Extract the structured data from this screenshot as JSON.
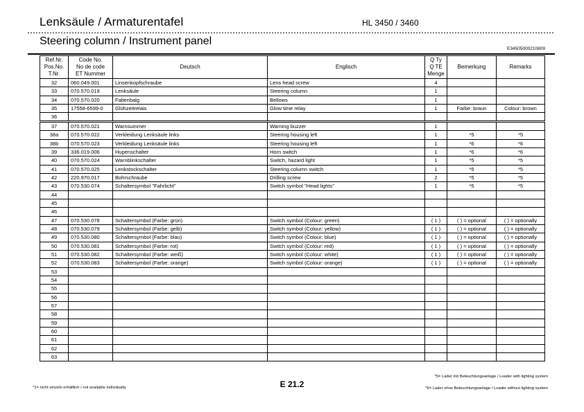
{
  "colors": {
    "text": "#000000",
    "background": "#ffffff"
  },
  "header": {
    "title_de": "Lenksäule / Armaturentafel",
    "model": "HL 3450 / 3460",
    "title_en": "Steering column / Instrument panel",
    "doc_code": "E34505000210809"
  },
  "table": {
    "columns": {
      "ref": "Ref.Nr.\nPos.No.\nT.Nr.",
      "code": "Code No.\nNo de code\nET Nummer",
      "de": "Deutsch",
      "en": "Englisch",
      "qty": "Q Ty\nQ TE\nMenge",
      "bem": "Bemerkung",
      "rem": "Remarks"
    },
    "rows": [
      {
        "ref": "32",
        "code": "060.049.001",
        "de": "Linsenkopfschraube",
        "en": "Lens head screw",
        "qty": "4",
        "bem": "",
        "rem": ""
      },
      {
        "ref": "33",
        "code": "070.570.019",
        "de": "Lenksäule",
        "en": "Steering column",
        "qty": "1",
        "bem": "",
        "rem": ""
      },
      {
        "ref": "34",
        "code": "070.570.020",
        "de": "Faltenbalg",
        "en": "Bellows",
        "qty": "1",
        "bem": "",
        "rem": ""
      },
      {
        "ref": "35",
        "code": "17558-6599-0",
        "de": "Glühzeitrelais",
        "en": "Glow time relay",
        "qty": "1",
        "bem": "Farbe: braun",
        "rem": "Colour: brown"
      },
      {
        "ref": "36",
        "code": "",
        "de": "",
        "en": "",
        "qty": "",
        "bem": "",
        "rem": ""
      },
      {
        "ref": "37",
        "code": "070.570.021",
        "de": "Warnsummer",
        "en": "Warning buzzer",
        "qty": "1",
        "bem": "",
        "rem": ""
      },
      {
        "ref": "38a",
        "code": "070.570.022",
        "de": "Verkleidung Lenksäule links",
        "en": "Steering housing left",
        "qty": "1",
        "bem": "*5",
        "rem": "*5"
      },
      {
        "ref": "38b",
        "code": "070.570.023",
        "de": "Verkleidung Lenksäule links",
        "en": "Steering housing left",
        "qty": "1",
        "bem": "*6",
        "rem": "*6"
      },
      {
        "ref": "39",
        "code": "336.019.006",
        "de": "Hupenschalter",
        "en": "Horn switch",
        "qty": "1",
        "bem": "*6",
        "rem": "*6"
      },
      {
        "ref": "40",
        "code": "070.570.024",
        "de": "Warnblinkschalter",
        "en": "Switch, hazard light",
        "qty": "1",
        "bem": "*5",
        "rem": "*5"
      },
      {
        "ref": "41",
        "code": "070.570.025",
        "de": "Lenkstockschalter",
        "en": "Steering column switch",
        "qty": "1",
        "bem": "*5",
        "rem": "*5"
      },
      {
        "ref": "42",
        "code": "220.970.017",
        "de": "Bohrschraube",
        "en": "Drilling screw",
        "qty": "2",
        "bem": "*5",
        "rem": "*5"
      },
      {
        "ref": "43",
        "code": "070.530.074",
        "de": "Schaltersymbol \"Fahrlicht\"",
        "en": "Switch symbol \"Head lights\"",
        "qty": "1",
        "bem": "*5",
        "rem": "*5"
      },
      {
        "ref": "44",
        "code": "",
        "de": "",
        "en": "",
        "qty": "",
        "bem": "",
        "rem": ""
      },
      {
        "ref": "45",
        "code": "",
        "de": "",
        "en": "",
        "qty": "",
        "bem": "",
        "rem": ""
      },
      {
        "ref": "46",
        "code": "",
        "de": "",
        "en": "",
        "qty": "",
        "bem": "",
        "rem": ""
      },
      {
        "ref": "47",
        "code": "070.530.078",
        "de": "Schaltersymbol (Farbe: grün)",
        "en": "Switch symbol (Colour: green)",
        "qty": "( 1 )",
        "bem": "(  ) = optional",
        "rem": "(  ) = optionally"
      },
      {
        "ref": "48",
        "code": "070.530.079",
        "de": "Schaltersymbol (Farbe: gelb)",
        "en": "Switch symbol (Colour: yellow)",
        "qty": "( 1 )",
        "bem": "(  ) = optional",
        "rem": "(  ) = optionally"
      },
      {
        "ref": "49",
        "code": "070.530.080",
        "de": "Schaltersymbol (Farbe: blau)",
        "en": "Switch symbol (Colour: blue)",
        "qty": "( 1 )",
        "bem": "(  ) = optional",
        "rem": "(  ) = optionally"
      },
      {
        "ref": "50",
        "code": "070.530.081",
        "de": "Schaltersymbol (Farbe: rot)",
        "en": "Switch symbol (Colour: red)",
        "qty": "( 1 )",
        "bem": "(  ) = optional",
        "rem": "(  ) = optionally"
      },
      {
        "ref": "51",
        "code": "070.530.082",
        "de": "Schaltersymbol (Farbe: weiß)",
        "en": "Switch symbol (Colour: white)",
        "qty": "( 1 )",
        "bem": "(  ) = optional",
        "rem": "(  ) = optionally"
      },
      {
        "ref": "52",
        "code": "070.530.083",
        "de": "Schaltersymbol (Farbe: orange)",
        "en": "Switch symbol (Colour: orange)",
        "qty": "( 1 )",
        "bem": "(  ) = optional",
        "rem": "(  ) = optionally"
      },
      {
        "ref": "53",
        "code": "",
        "de": "",
        "en": "",
        "qty": "",
        "bem": "",
        "rem": ""
      },
      {
        "ref": "54",
        "code": "",
        "de": "",
        "en": "",
        "qty": "",
        "bem": "",
        "rem": ""
      },
      {
        "ref": "55",
        "code": "",
        "de": "",
        "en": "",
        "qty": "",
        "bem": "",
        "rem": ""
      },
      {
        "ref": "56",
        "code": "",
        "de": "",
        "en": "",
        "qty": "",
        "bem": "",
        "rem": ""
      },
      {
        "ref": "57",
        "code": "",
        "de": "",
        "en": "",
        "qty": "",
        "bem": "",
        "rem": ""
      },
      {
        "ref": "58",
        "code": "",
        "de": "",
        "en": "",
        "qty": "",
        "bem": "",
        "rem": ""
      },
      {
        "ref": "59",
        "code": "",
        "de": "",
        "en": "",
        "qty": "",
        "bem": "",
        "rem": ""
      },
      {
        "ref": "60",
        "code": "",
        "de": "",
        "en": "",
        "qty": "",
        "bem": "",
        "rem": ""
      },
      {
        "ref": "61",
        "code": "",
        "de": "",
        "en": "",
        "qty": "",
        "bem": "",
        "rem": ""
      },
      {
        "ref": "62",
        "code": "",
        "de": "",
        "en": "",
        "qty": "",
        "bem": "",
        "rem": ""
      },
      {
        "ref": "63",
        "code": "",
        "de": "",
        "en": "",
        "qty": "",
        "bem": "",
        "rem": ""
      }
    ]
  },
  "footer": {
    "note_left": "*1= nicht einzeln erhältlich / not available individually",
    "page_number": "E 21.2",
    "note_right_1": "*5= Lader mit Beleuchtungsanlage / Loader with lighting system",
    "note_right_2": "*6= Lader ohne Beleuchtungsanlage / Loader without lighting system"
  }
}
